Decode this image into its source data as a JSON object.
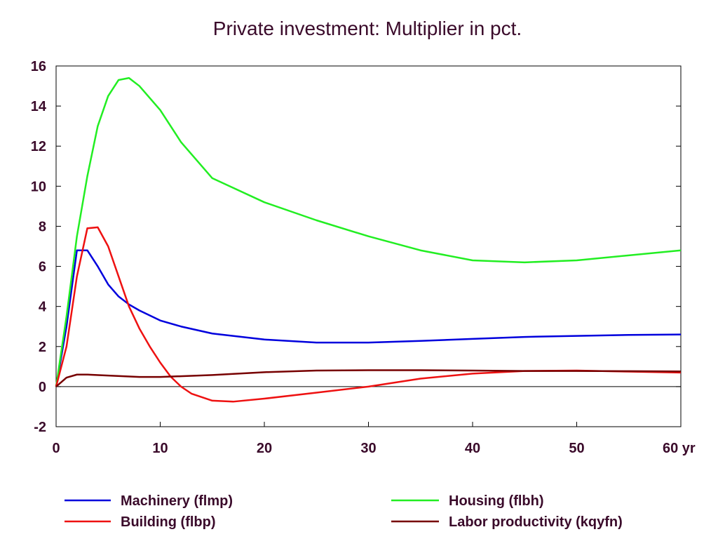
{
  "chart_data": {
    "type": "line",
    "title": "Private investment: Multiplier in pct.",
    "xlabel": "",
    "ylabel": "",
    "xlim": [
      0,
      60
    ],
    "ylim": [
      -2,
      16
    ],
    "x_ticks": [
      0,
      10,
      20,
      30,
      40,
      50,
      60
    ],
    "x_tick_labels": [
      "0",
      "10",
      "20",
      "30",
      "40",
      "50",
      "60 yr"
    ],
    "y_ticks": [
      -2,
      0,
      2,
      4,
      6,
      8,
      10,
      12,
      14,
      16
    ],
    "y_tick_labels": [
      "-2",
      "0",
      "2",
      "4",
      "6",
      "8",
      "10",
      "12",
      "14",
      "16"
    ],
    "grid": false,
    "zero_line": true,
    "legend_position": "bottom",
    "series": [
      {
        "name": "Machinery (flmp)",
        "color": "#0000dd",
        "x": [
          0,
          1,
          2,
          3,
          4,
          5,
          6,
          7,
          8,
          10,
          12,
          15,
          20,
          25,
          30,
          35,
          40,
          45,
          50,
          55,
          60
        ],
        "y": [
          0,
          3.0,
          6.8,
          6.8,
          6.0,
          5.1,
          4.5,
          4.1,
          3.8,
          3.3,
          3.0,
          2.65,
          2.35,
          2.2,
          2.2,
          2.28,
          2.38,
          2.48,
          2.53,
          2.58,
          2.6
        ]
      },
      {
        "name": "Housing (flbh)",
        "color": "#22ee22",
        "x": [
          0,
          1,
          2,
          3,
          4,
          5,
          6,
          7,
          8,
          10,
          12,
          15,
          20,
          25,
          30,
          35,
          40,
          45,
          50,
          55,
          60
        ],
        "y": [
          0,
          3.5,
          7.5,
          10.5,
          13.0,
          14.5,
          15.3,
          15.4,
          15.0,
          13.8,
          12.2,
          10.4,
          9.2,
          8.3,
          7.5,
          6.8,
          6.3,
          6.2,
          6.3,
          6.55,
          6.8
        ]
      },
      {
        "name": "Building (flbp)",
        "color": "#ee1111",
        "x": [
          0,
          1,
          2,
          3,
          4,
          5,
          6,
          7,
          8,
          9,
          10,
          11,
          12,
          13,
          15,
          17,
          20,
          25,
          30,
          35,
          40,
          45,
          50,
          55,
          60
        ],
        "y": [
          0,
          2.0,
          5.5,
          7.9,
          7.95,
          7.0,
          5.5,
          4.0,
          2.9,
          2.0,
          1.2,
          0.5,
          0.0,
          -0.35,
          -0.7,
          -0.75,
          -0.6,
          -0.3,
          0.0,
          0.4,
          0.65,
          0.78,
          0.8,
          0.75,
          0.7
        ]
      },
      {
        "name": "Labor productivity (kqyfn)",
        "color": "#770000",
        "x": [
          0,
          1,
          2,
          3,
          5,
          8,
          10,
          15,
          20,
          25,
          30,
          35,
          40,
          45,
          50,
          55,
          60
        ],
        "y": [
          0,
          0.45,
          0.6,
          0.6,
          0.55,
          0.48,
          0.48,
          0.58,
          0.72,
          0.8,
          0.82,
          0.82,
          0.8,
          0.78,
          0.78,
          0.77,
          0.76
        ]
      }
    ]
  }
}
